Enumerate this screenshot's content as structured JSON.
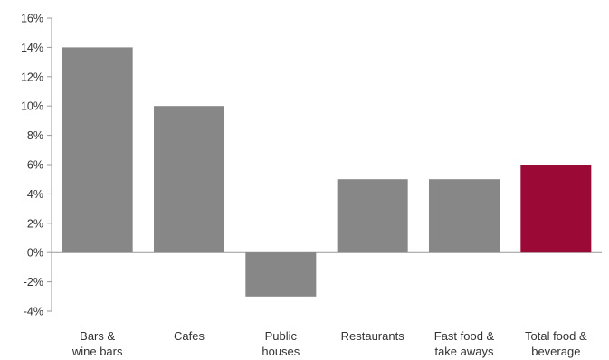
{
  "chart_data": {
    "type": "bar",
    "categories": [
      [
        "Bars &",
        "wine bars"
      ],
      [
        "Cafes"
      ],
      [
        "Public",
        "houses"
      ],
      [
        "Restaurants"
      ],
      [
        "Fast food &",
        "take aways"
      ],
      [
        "Total food &",
        "beverage"
      ]
    ],
    "values": [
      14,
      10,
      -3,
      5,
      5,
      6
    ],
    "highlight_index": 5,
    "bar_color": "#878787",
    "highlight_color": "#9b0a37",
    "ylim": [
      -4,
      16
    ],
    "yticks": [
      -4,
      -2,
      0,
      2,
      4,
      6,
      8,
      10,
      12,
      14,
      16
    ],
    "ytick_suffix": "%",
    "grid": false,
    "title": "",
    "xlabel": "",
    "ylabel": ""
  }
}
